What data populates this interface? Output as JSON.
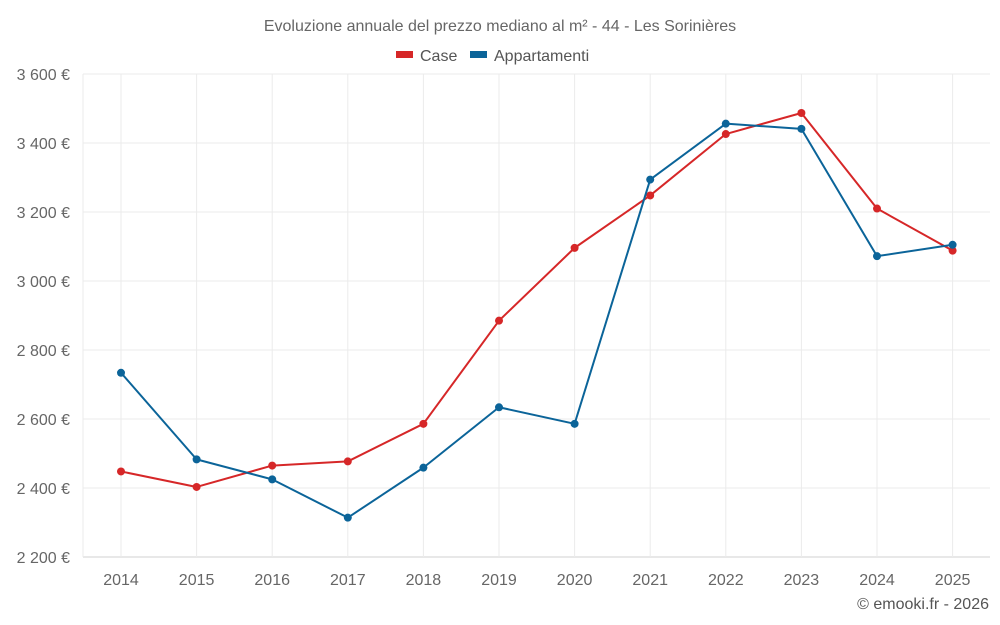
{
  "chart_data": {
    "type": "line",
    "title": "Evoluzione annuale del prezzo mediano al m² - 44 - Les Sorinières",
    "xlabel": "",
    "ylabel": "",
    "categories": [
      "2014",
      "2015",
      "2016",
      "2017",
      "2018",
      "2019",
      "2020",
      "2021",
      "2022",
      "2023",
      "2024",
      "2025"
    ],
    "series": [
      {
        "name": "Case",
        "color": "#d62728",
        "values": [
          2448,
          2403,
          2465,
          2477,
          2586,
          2885,
          3096,
          3248,
          3426,
          3487,
          3210,
          3088
        ]
      },
      {
        "name": "Appartamenti",
        "color": "#0b6499",
        "values": [
          2734,
          2483,
          2425,
          2314,
          2459,
          2634,
          2586,
          3294,
          3456,
          3441,
          3072,
          3105
        ]
      }
    ],
    "ylim": [
      2200,
      3600
    ],
    "yticks": [
      2200,
      2400,
      2600,
      2800,
      3000,
      3200,
      3400,
      3600
    ],
    "ytick_labels": [
      "2 200 €",
      "2 400 €",
      "2 600 €",
      "2 800 €",
      "3 000 €",
      "3 200 €",
      "3 400 €",
      "3 600 €"
    ],
    "grid": true,
    "legend_position": "top-center"
  },
  "footer": {
    "copyright": "© emooki.fr - 2026"
  }
}
